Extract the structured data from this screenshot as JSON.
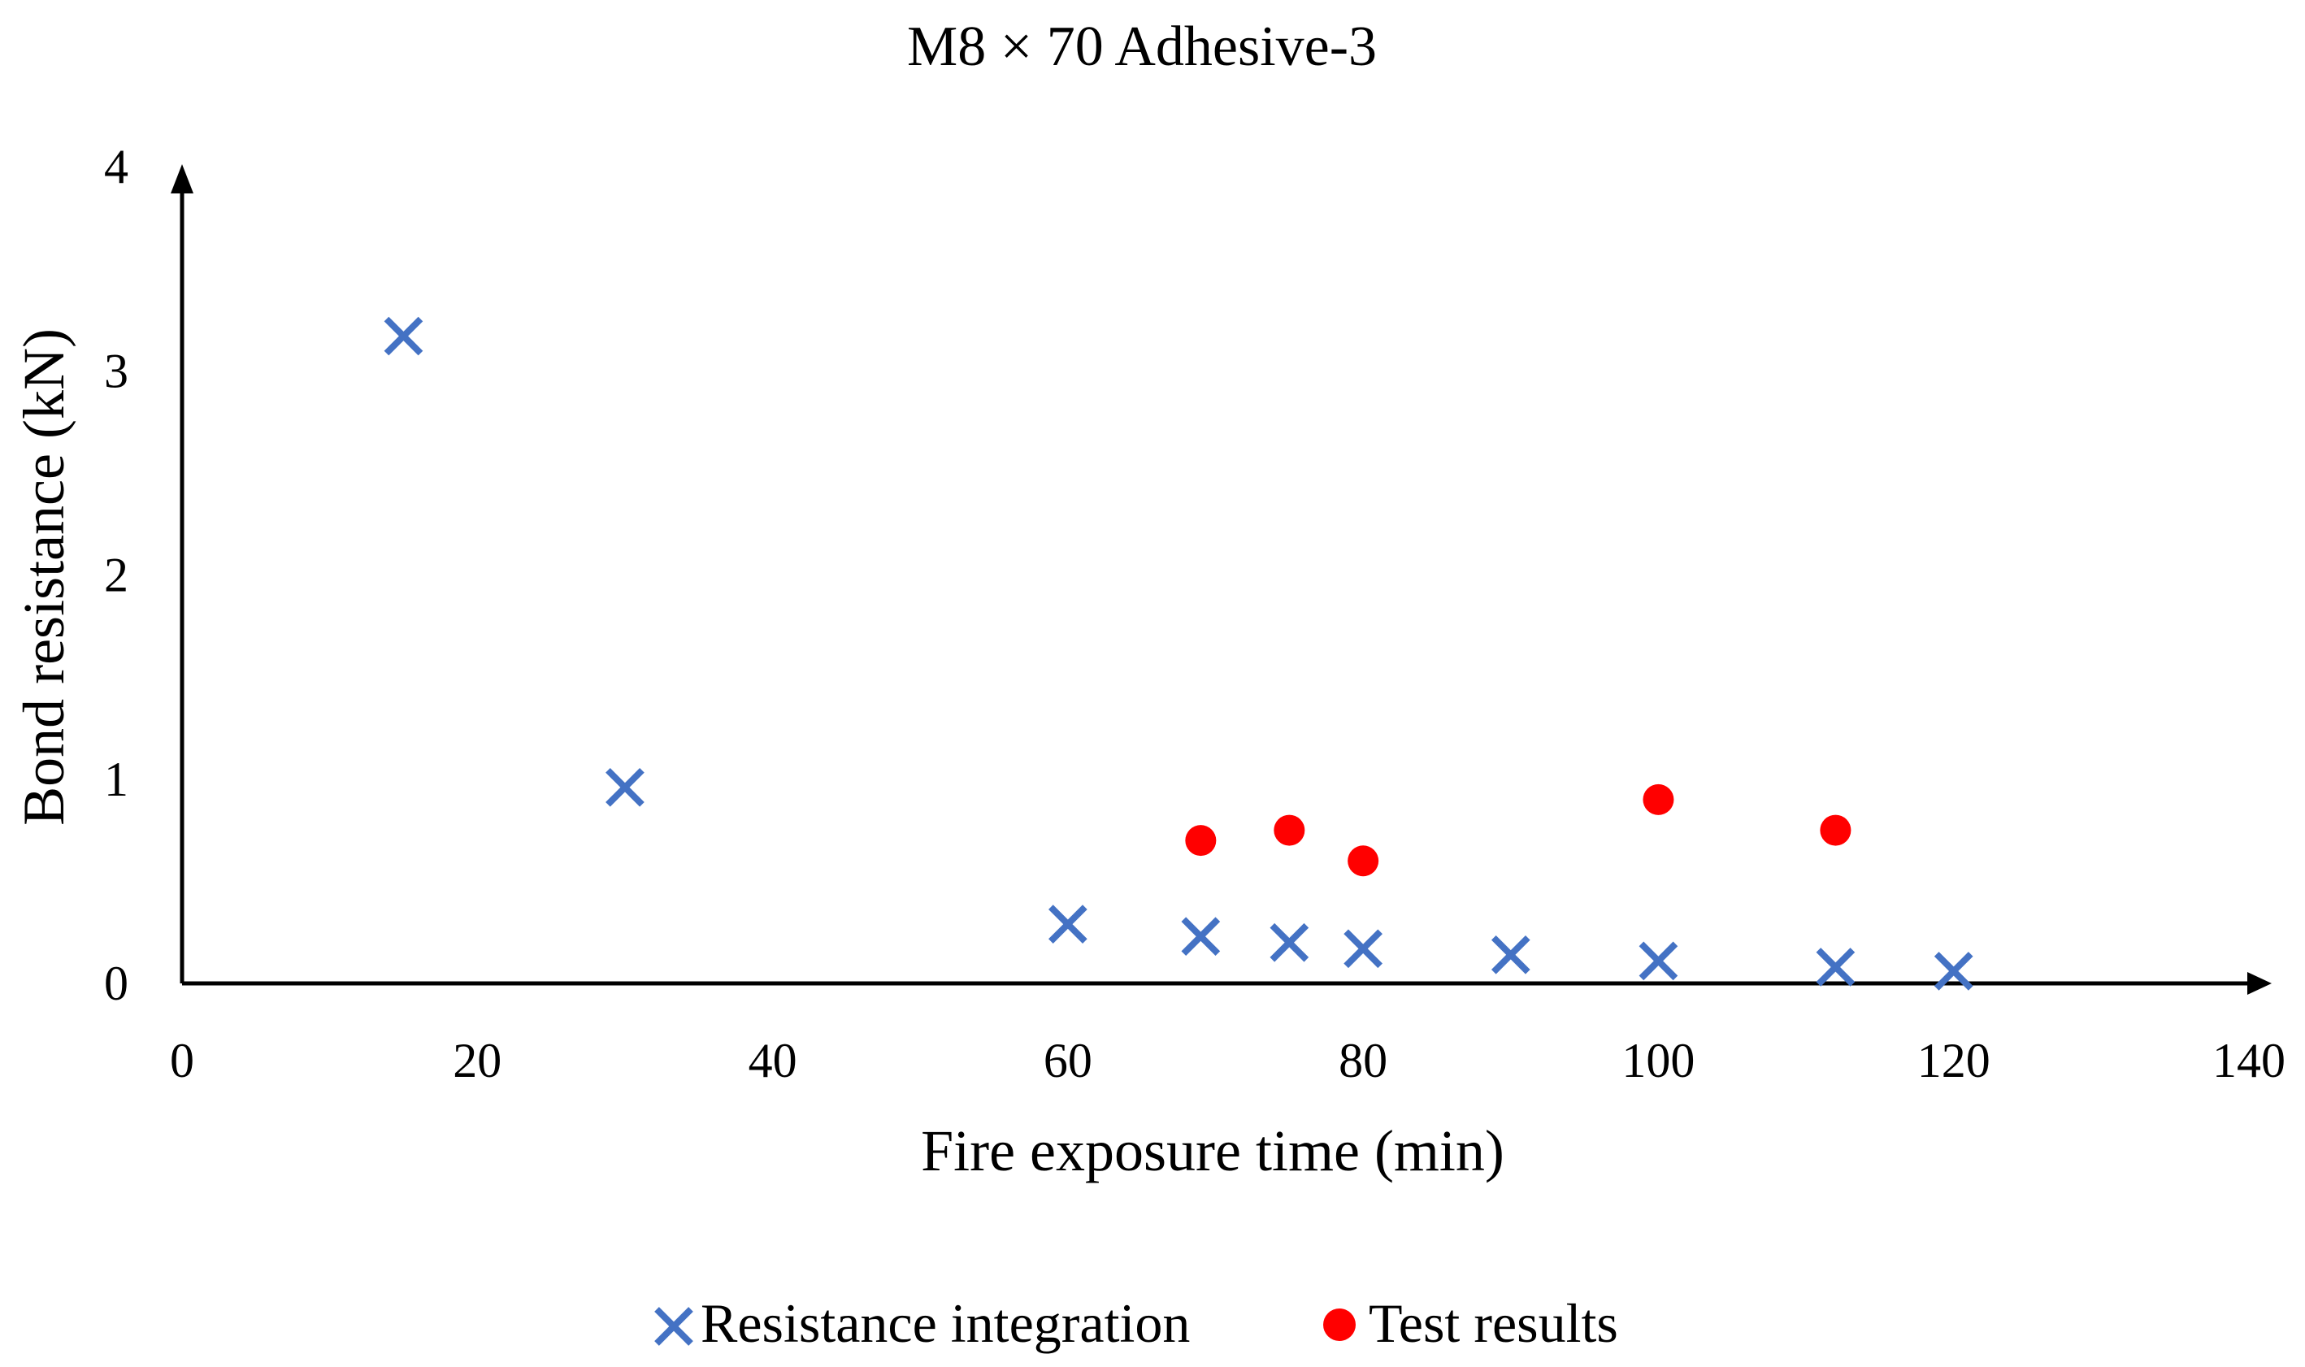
{
  "chart_data": {
    "type": "scatter",
    "title": "M8 × 70 Adhesive-3",
    "xlabel": "Fire exposure time (min)",
    "ylabel": "Bond resistance (kN)",
    "xlim": [
      0,
      140
    ],
    "ylim": [
      0,
      4
    ],
    "xticks": [
      0,
      20,
      40,
      60,
      80,
      100,
      120,
      140
    ],
    "yticks": [
      0,
      1,
      2,
      3,
      4
    ],
    "grid": false,
    "legend_position": "bottom-center",
    "series": [
      {
        "name": "Resistance integration",
        "marker": "x",
        "color": "#4472C4",
        "x": [
          15,
          30,
          60,
          69,
          75,
          80,
          90,
          100,
          112,
          120
        ],
        "y": [
          3.17,
          0.96,
          0.29,
          0.23,
          0.2,
          0.17,
          0.14,
          0.11,
          0.08,
          0.06
        ]
      },
      {
        "name": "Test results",
        "marker": "circle",
        "color": "#FF0000",
        "x": [
          69,
          75,
          80,
          100,
          112
        ],
        "y": [
          0.7,
          0.75,
          0.6,
          0.9,
          0.75
        ]
      }
    ]
  }
}
